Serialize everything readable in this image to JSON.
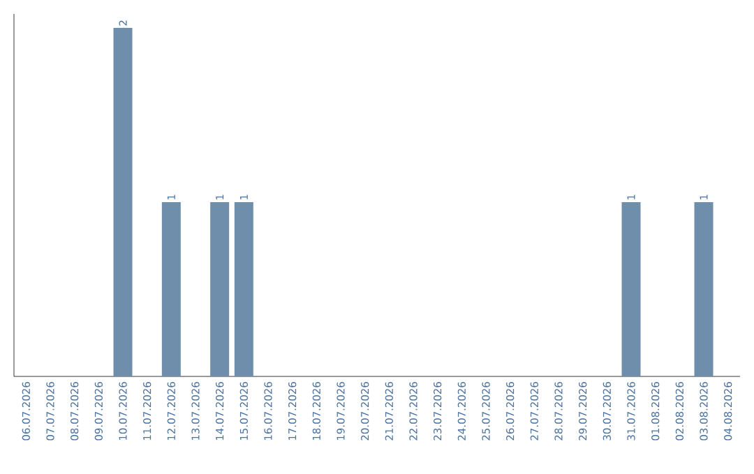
{
  "chart_data": {
    "type": "bar",
    "categories": [
      "06.07.2026",
      "07.07.2026",
      "08.07.2026",
      "09.07.2026",
      "10.07.2026",
      "11.07.2026",
      "12.07.2026",
      "13.07.2026",
      "14.07.2026",
      "15.07.2026",
      "16.07.2026",
      "17.07.2026",
      "18.07.2026",
      "19.07.2026",
      "20.07.2026",
      "21.07.2026",
      "22.07.2026",
      "23.07.2026",
      "24.07.2026",
      "25.07.2026",
      "26.07.2026",
      "27.07.2026",
      "28.07.2026",
      "29.07.2026",
      "30.07.2026",
      "31.07.2026",
      "01.08.2026",
      "02.08.2026",
      "03.08.2026",
      "04.08.2026"
    ],
    "values": [
      0,
      0,
      0,
      0,
      2,
      0,
      1,
      0,
      1,
      1,
      0,
      0,
      0,
      0,
      0,
      0,
      0,
      0,
      0,
      0,
      0,
      0,
      0,
      0,
      0,
      1,
      0,
      0,
      1,
      0
    ],
    "value_labels": [
      null,
      null,
      null,
      null,
      "2",
      null,
      "1",
      null,
      "1",
      "1",
      null,
      null,
      null,
      null,
      null,
      null,
      null,
      null,
      null,
      null,
      null,
      null,
      null,
      null,
      null,
      "1",
      null,
      null,
      "1",
      null
    ],
    "color": "#6e8eac"
  }
}
